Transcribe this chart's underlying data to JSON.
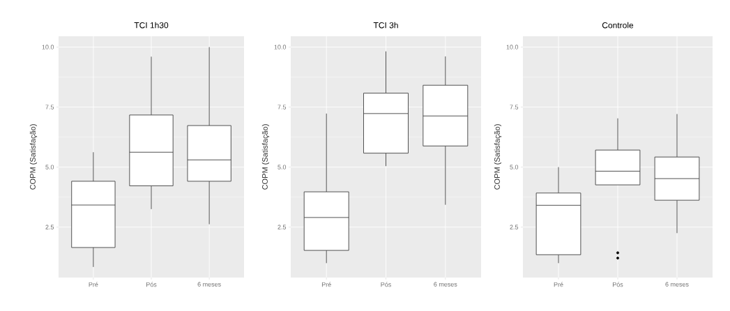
{
  "chart_data": [
    {
      "type": "box",
      "title": "TCI 1h30",
      "ylabel": "COPM (Satisfação)",
      "categories": [
        "Pré",
        "Pós",
        "6 meses"
      ],
      "boxes": [
        {
          "low": 0.84,
          "q1": 1.65,
          "median": 3.42,
          "q3": 4.41,
          "high": 5.62
        },
        {
          "low": 3.25,
          "q1": 4.22,
          "median": 5.62,
          "q3": 7.17,
          "high": 9.6
        },
        {
          "low": 2.62,
          "q1": 4.41,
          "median": 5.3,
          "q3": 6.73,
          "high": 10.0
        }
      ],
      "ylim": [
        0.4,
        10.45
      ],
      "yticks": [
        {
          "value": 2.5,
          "label": "2.5"
        },
        {
          "value": 5,
          "label": "5.0"
        },
        {
          "value": 7.5,
          "label": "7.5"
        },
        {
          "value": 10,
          "label": "10.0"
        }
      ],
      "grid": true
    },
    {
      "type": "box",
      "title": "TCI 3h",
      "ylabel": "COPM (Satisfação)",
      "categories": [
        "Pré",
        "Pós",
        "6 meses"
      ],
      "boxes": [
        {
          "low": 1.0,
          "q1": 1.53,
          "median": 2.9,
          "q3": 3.97,
          "high": 7.23
        },
        {
          "low": 5.04,
          "q1": 5.58,
          "median": 7.23,
          "q3": 8.08,
          "high": 9.82
        },
        {
          "low": 3.43,
          "q1": 5.88,
          "median": 7.13,
          "q3": 8.41,
          "high": 9.61
        }
      ],
      "ylim": [
        0.4,
        10.45
      ],
      "yticks": [
        {
          "value": 2.5,
          "label": "2.5"
        },
        {
          "value": 5,
          "label": "5.0"
        },
        {
          "value": 7.5,
          "label": "7.5"
        },
        {
          "value": 10,
          "label": "10.0"
        }
      ],
      "grid": true
    },
    {
      "type": "box",
      "title": "Controle",
      "ylabel": "COPM (Satisfação)",
      "categories": [
        "Pré",
        "Pós",
        "6 meses"
      ],
      "boxes": [
        {
          "low": 1.0,
          "q1": 1.35,
          "median": 3.41,
          "q3": 3.92,
          "high": 5.0
        },
        {
          "low": 4.26,
          "q1": 4.26,
          "median": 4.83,
          "q3": 5.71,
          "high": 7.03,
          "outliers": [
            1.43,
            1.21
          ]
        },
        {
          "low": 2.25,
          "q1": 3.62,
          "median": 4.52,
          "q3": 5.42,
          "high": 7.21
        }
      ],
      "ylim": [
        0.4,
        10.45
      ],
      "yticks": [
        {
          "value": 2.5,
          "label": "2.5"
        },
        {
          "value": 5,
          "label": "5.0"
        },
        {
          "value": 7.5,
          "label": "7.5"
        },
        {
          "value": 10,
          "label": "10.0"
        }
      ],
      "grid": true
    }
  ]
}
